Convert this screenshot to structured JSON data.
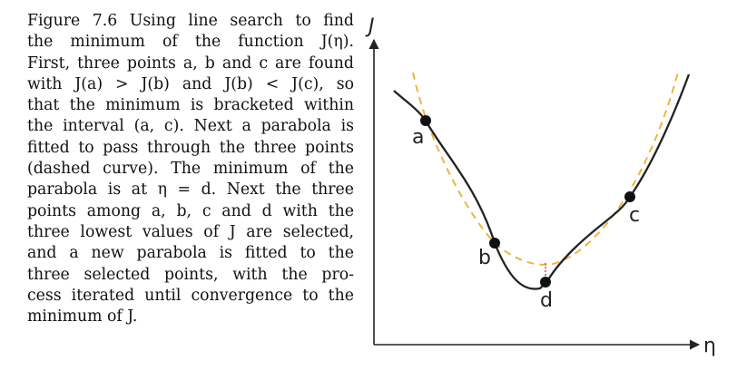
{
  "caption": {
    "lines": [
      "Figure 7.6 Using line search to find",
      "the minimum of the function J(η).",
      "First, three points a, b and c are found",
      "with J(a) > J(b) and J(b) < J(c), so",
      "that the minimum is bracketed within",
      "the interval (a, c). Next a parabola is",
      "fitted to pass through the three points",
      "(dashed curve). The minimum of the",
      "parabola is at η = d. Next the three",
      "points among a, b, c and d with the",
      "three lowest values of J are selected,",
      "and a new parabola is fitted to the",
      "three selected points, with the pro-",
      "cess iterated until convergence to the",
      "minimum of J."
    ]
  },
  "figure": {
    "y_axis_label": "J",
    "x_axis_label": "η",
    "points": [
      {
        "label": "a"
      },
      {
        "label": "b"
      },
      {
        "label": "c"
      },
      {
        "label": "d"
      }
    ],
    "colors": {
      "curve": "#222222",
      "parabola": "#f0b43c",
      "marker": "#e05050",
      "point": "#111111"
    }
  }
}
